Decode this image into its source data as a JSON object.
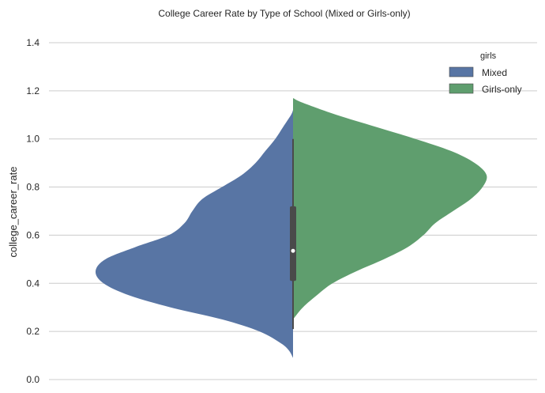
{
  "chart_data": {
    "type": "violin",
    "title": "College Career Rate by Type of School (Mixed or Girls-only)",
    "xlabel": "",
    "ylabel": "college_career_rate",
    "ylim": [
      0.0,
      1.4
    ],
    "yticks": [
      "0.0",
      "0.2",
      "0.4",
      "0.6",
      "0.8",
      "1.0",
      "1.2",
      "1.4"
    ],
    "grid": true,
    "split": true,
    "legend": {
      "title": "girls",
      "placement": "top-right",
      "entries": [
        "Mixed",
        "Girls-only"
      ]
    },
    "series": [
      {
        "name": "Mixed",
        "color": "#5875a4",
        "side": "left",
        "density": [
          [
            0.09,
            0.0
          ],
          [
            0.12,
            0.02
          ],
          [
            0.15,
            0.06
          ],
          [
            0.2,
            0.17
          ],
          [
            0.25,
            0.36
          ],
          [
            0.3,
            0.62
          ],
          [
            0.35,
            0.83
          ],
          [
            0.4,
            0.96
          ],
          [
            0.45,
            1.0
          ],
          [
            0.5,
            0.95
          ],
          [
            0.55,
            0.8
          ],
          [
            0.6,
            0.63
          ],
          [
            0.65,
            0.55
          ],
          [
            0.7,
            0.51
          ],
          [
            0.75,
            0.46
          ],
          [
            0.8,
            0.36
          ],
          [
            0.85,
            0.26
          ],
          [
            0.9,
            0.19
          ],
          [
            0.95,
            0.14
          ],
          [
            1.0,
            0.09
          ],
          [
            1.05,
            0.05
          ],
          [
            1.1,
            0.01
          ],
          [
            1.12,
            0.0
          ]
        ]
      },
      {
        "name": "Girls-only",
        "color": "#5f9e6e",
        "side": "right",
        "density": [
          [
            0.25,
            0.0
          ],
          [
            0.3,
            0.05
          ],
          [
            0.35,
            0.12
          ],
          [
            0.4,
            0.2
          ],
          [
            0.45,
            0.32
          ],
          [
            0.5,
            0.46
          ],
          [
            0.55,
            0.58
          ],
          [
            0.6,
            0.66
          ],
          [
            0.65,
            0.72
          ],
          [
            0.7,
            0.81
          ],
          [
            0.75,
            0.9
          ],
          [
            0.8,
            0.96
          ],
          [
            0.85,
            0.98
          ],
          [
            0.9,
            0.92
          ],
          [
            0.95,
            0.8
          ],
          [
            1.0,
            0.62
          ],
          [
            1.05,
            0.42
          ],
          [
            1.1,
            0.22
          ],
          [
            1.15,
            0.05
          ],
          [
            1.17,
            0.0
          ]
        ]
      }
    ],
    "box": {
      "whisker_low": 0.21,
      "q1": 0.41,
      "median": 0.535,
      "q3": 0.72,
      "whisker_high": 1.0,
      "color": "#4a4a4a"
    }
  }
}
